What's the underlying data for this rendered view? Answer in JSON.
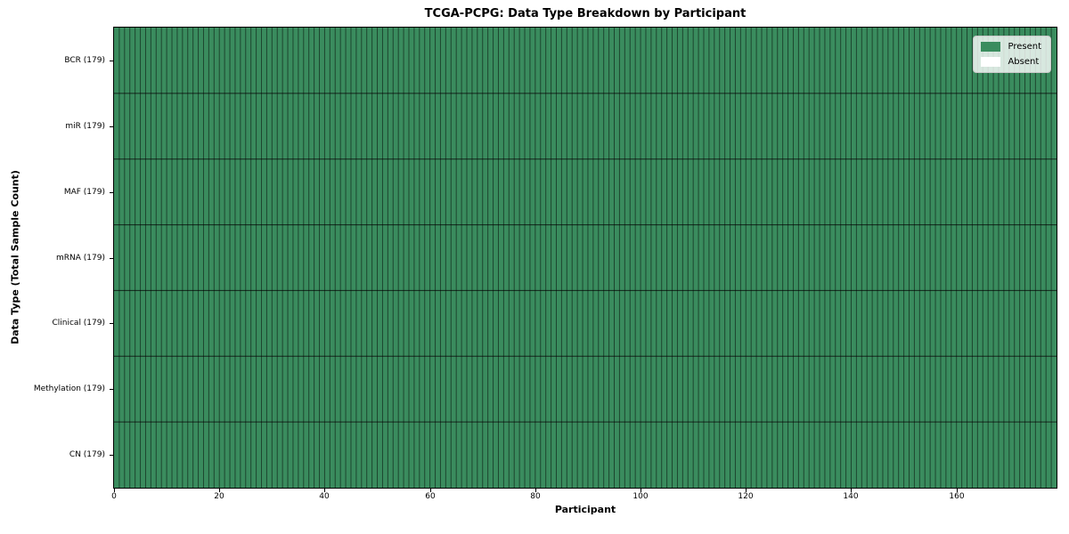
{
  "chart_data": {
    "type": "heatmap",
    "title": "TCGA-PCPG: Data Type Breakdown by Participant",
    "xlabel": "Participant",
    "ylabel": "Data Type (Total Sample Count)",
    "x_ticks": [
      0,
      20,
      40,
      60,
      80,
      100,
      120,
      140,
      160
    ],
    "xlim": [
      0,
      179
    ],
    "n_participants": 179,
    "grid": true,
    "rows": [
      {
        "name": "BCR",
        "label": "BCR (179)",
        "total_samples": 179,
        "present_count": 179,
        "absent_count": 0
      },
      {
        "name": "miR",
        "label": "miR (179)",
        "total_samples": 179,
        "present_count": 179,
        "absent_count": 0
      },
      {
        "name": "MAF",
        "label": "MAF (179)",
        "total_samples": 179,
        "present_count": 179,
        "absent_count": 0
      },
      {
        "name": "mRNA",
        "label": "mRNA (179)",
        "total_samples": 179,
        "present_count": 179,
        "absent_count": 0
      },
      {
        "name": "Clinical",
        "label": "Clinical (179)",
        "total_samples": 179,
        "present_count": 179,
        "absent_count": 0
      },
      {
        "name": "Methylation",
        "label": "Methylation (179)",
        "total_samples": 179,
        "present_count": 179,
        "absent_count": 0
      },
      {
        "name": "CN",
        "label": "CN (179)",
        "total_samples": 179,
        "present_count": 179,
        "absent_count": 0
      }
    ],
    "legend": {
      "position": "upper right",
      "items": [
        {
          "label": "Present",
          "color": "#3a8c5e"
        },
        {
          "label": "Absent",
          "color": "#ffffff"
        }
      ]
    },
    "colors": {
      "present": "#3a8c5e",
      "absent": "#ffffff",
      "cell_edge": "#000000",
      "cell_edge_opacity": 0.5,
      "row_edge_opacity": 0.75,
      "spine": "#000000"
    }
  }
}
